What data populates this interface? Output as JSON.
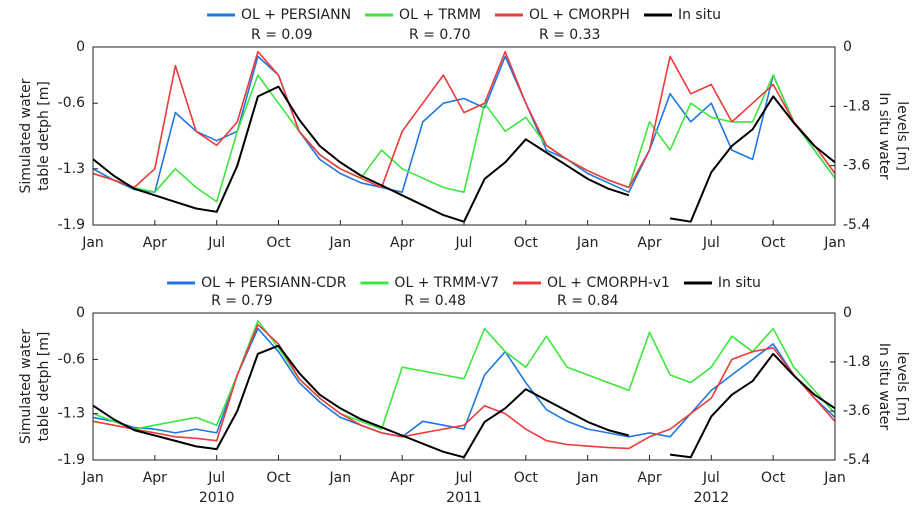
{
  "chart_data": [
    {
      "type": "line",
      "ylabel": [
        "Simulated water",
        "table detph [m]"
      ],
      "y2label": [
        "In situ water",
        "levels [m]"
      ],
      "x": [
        0,
        1,
        2,
        3,
        4,
        5,
        6,
        7,
        8,
        9,
        10,
        11,
        12,
        13,
        14,
        15,
        16,
        17,
        18,
        19,
        20,
        21,
        22,
        23,
        24,
        25,
        26,
        27,
        28,
        29,
        30,
        31,
        32,
        33,
        34,
        35,
        36
      ],
      "xlim": [
        0,
        36
      ],
      "xticks": [
        {
          "value": 0,
          "label": "Jan"
        },
        {
          "value": 3,
          "label": "Apr"
        },
        {
          "value": 6,
          "label": "Jul"
        },
        {
          "value": 9,
          "label": "Oct"
        },
        {
          "value": 12,
          "label": "Jan"
        },
        {
          "value": 15,
          "label": "Apr"
        },
        {
          "value": 18,
          "label": "Jul"
        },
        {
          "value": 21,
          "label": "Oct"
        },
        {
          "value": 24,
          "label": "Jan"
        },
        {
          "value": 27,
          "label": "Apr"
        },
        {
          "value": 30,
          "label": "Jul"
        },
        {
          "value": 33,
          "label": "Oct"
        },
        {
          "value": 36,
          "label": "Jan"
        }
      ],
      "ylim": [
        -1.9,
        0
      ],
      "yticks": [
        -1.9,
        -1.3,
        -0.6,
        0
      ],
      "y2lim": [
        -5.4,
        0
      ],
      "y2ticks": [
        -5.4,
        -3.6,
        -1.8,
        0
      ],
      "series": [
        {
          "name": "OL + PERSIANN",
          "r_label": "R = 0.09",
          "color": "#1f77e0",
          "values": [
            -1.3,
            -1.42,
            -1.52,
            -1.55,
            -0.7,
            -0.9,
            -1.0,
            -0.9,
            -0.1,
            -0.3,
            -0.9,
            -1.2,
            -1.35,
            -1.45,
            -1.5,
            -1.55,
            -0.8,
            -0.6,
            -0.55,
            -0.65,
            -0.1,
            -0.6,
            -1.1,
            -1.2,
            -1.35,
            -1.45,
            -1.55,
            -1.1,
            -0.5,
            -0.8,
            -0.6,
            -1.1,
            -1.2,
            -0.3,
            -0.8,
            -1.1,
            -1.4
          ]
        },
        {
          "name": "OL + TRMM",
          "r_label": "R = 0.70",
          "color": "#3ee63e",
          "values": [
            -1.35,
            -1.42,
            -1.5,
            -1.55,
            -1.3,
            -1.5,
            -1.65,
            -0.9,
            -0.3,
            -0.6,
            -0.9,
            -1.15,
            -1.3,
            -1.4,
            -1.1,
            -1.3,
            -1.4,
            -1.5,
            -1.55,
            -0.6,
            -0.9,
            -0.75,
            -1.05,
            -1.2,
            -1.32,
            -1.42,
            -1.5,
            -0.8,
            -1.1,
            -0.6,
            -0.75,
            -0.8,
            -0.8,
            -0.3,
            -0.8,
            -1.1,
            -1.4
          ]
        },
        {
          "name": "OL + CMORPH",
          "r_label": "R = 0.33",
          "color": "#ee3a3a",
          "values": [
            -1.35,
            -1.42,
            -1.5,
            -1.3,
            -0.2,
            -0.9,
            -1.05,
            -0.8,
            -0.05,
            -0.3,
            -0.9,
            -1.15,
            -1.3,
            -1.4,
            -1.5,
            -0.9,
            -0.6,
            -0.3,
            -0.7,
            -0.6,
            -0.05,
            -0.6,
            -1.05,
            -1.2,
            -1.32,
            -1.42,
            -1.5,
            -1.1,
            -0.1,
            -0.5,
            -0.4,
            -0.8,
            -0.6,
            -0.4,
            -0.8,
            -1.05,
            -1.35
          ]
        },
        {
          "name": "In situ",
          "color": "#000000",
          "axis": "y2",
          "values": [
            -3.4,
            -3.9,
            -4.3,
            -4.5,
            -4.7,
            -4.9,
            -5.0,
            -3.6,
            -1.5,
            -1.2,
            -2.2,
            -3.0,
            -3.5,
            -3.9,
            -4.2,
            -4.5,
            -4.8,
            -5.1,
            -5.3,
            -4.0,
            -3.5,
            -2.8,
            -3.2,
            -3.6,
            -4.0,
            -4.3,
            -4.5,
            null,
            -5.2,
            -5.3,
            -3.8,
            -3.0,
            -2.5,
            -1.5,
            -2.3,
            -3.0,
            -3.5
          ]
        }
      ]
    },
    {
      "type": "line",
      "ylabel": [
        "Simulated water",
        "table detph [m]"
      ],
      "y2label": [
        "In situ water",
        "levels [m]"
      ],
      "x": [
        0,
        1,
        2,
        3,
        4,
        5,
        6,
        7,
        8,
        9,
        10,
        11,
        12,
        13,
        14,
        15,
        16,
        17,
        18,
        19,
        20,
        21,
        22,
        23,
        24,
        25,
        26,
        27,
        28,
        29,
        30,
        31,
        32,
        33,
        34,
        35,
        36
      ],
      "xlim": [
        0,
        36
      ],
      "xticks": [
        {
          "value": 0,
          "label": "Jan"
        },
        {
          "value": 3,
          "label": "Apr"
        },
        {
          "value": 6,
          "label": "Jul"
        },
        {
          "value": 9,
          "label": "Oct"
        },
        {
          "value": 12,
          "label": "Jan"
        },
        {
          "value": 15,
          "label": "Apr"
        },
        {
          "value": 18,
          "label": "Jul"
        },
        {
          "value": 21,
          "label": "Oct"
        },
        {
          "value": 24,
          "label": "Jan"
        },
        {
          "value": 27,
          "label": "Apr"
        },
        {
          "value": 30,
          "label": "Jul"
        },
        {
          "value": 33,
          "label": "Oct"
        },
        {
          "value": 36,
          "label": "Jan"
        }
      ],
      "year_labels": [
        {
          "value": 6,
          "label": "2010"
        },
        {
          "value": 18,
          "label": "2011"
        },
        {
          "value": 30,
          "label": "2012"
        }
      ],
      "ylim": [
        -1.9,
        0
      ],
      "yticks": [
        -1.9,
        -1.3,
        -0.6,
        0
      ],
      "y2lim": [
        -5.4,
        0
      ],
      "y2ticks": [
        -5.4,
        -3.6,
        -1.8,
        0
      ],
      "series": [
        {
          "name": "OL + PERSIANN-CDR",
          "r_label": "R = 0.79",
          "color": "#1f77e0",
          "values": [
            -1.35,
            -1.4,
            -1.48,
            -1.5,
            -1.55,
            -1.5,
            -1.55,
            -0.8,
            -0.2,
            -0.5,
            -0.9,
            -1.15,
            -1.35,
            -1.45,
            -1.55,
            -1.6,
            -1.4,
            -1.45,
            -1.5,
            -0.8,
            -0.5,
            -0.9,
            -1.25,
            -1.4,
            -1.5,
            -1.55,
            -1.6,
            -1.55,
            -1.6,
            -1.3,
            -1.0,
            -0.8,
            -0.6,
            -0.4,
            -0.8,
            -1.1,
            -1.35
          ]
        },
        {
          "name": "OL + TRMM-V7",
          "r_label": "R = 0.48",
          "color": "#3ee63e",
          "values": [
            -1.3,
            -1.4,
            -1.5,
            -1.45,
            -1.4,
            -1.35,
            -1.45,
            -0.8,
            -0.1,
            -0.45,
            -0.85,
            -1.1,
            -1.3,
            -1.4,
            -1.5,
            -0.7,
            -0.75,
            -0.8,
            -0.85,
            -0.2,
            -0.5,
            -0.7,
            -0.3,
            -0.7,
            -0.8,
            -0.9,
            -1.0,
            -0.25,
            -0.8,
            -0.9,
            -0.7,
            -0.3,
            -0.5,
            -0.2,
            -0.7,
            -1.0,
            -1.3
          ]
        },
        {
          "name": "OL + CMORPH-v1",
          "r_label": "R = 0.84",
          "color": "#ee3a3a",
          "values": [
            -1.4,
            -1.45,
            -1.5,
            -1.55,
            -1.6,
            -1.62,
            -1.65,
            -0.8,
            -0.15,
            -0.4,
            -0.85,
            -1.1,
            -1.3,
            -1.45,
            -1.55,
            -1.6,
            -1.55,
            -1.5,
            -1.45,
            -1.2,
            -1.3,
            -1.5,
            -1.65,
            -1.7,
            -1.72,
            -1.74,
            -1.75,
            -1.6,
            -1.5,
            -1.3,
            -1.1,
            -0.6,
            -0.5,
            -0.45,
            -0.8,
            -1.1,
            -1.4
          ]
        },
        {
          "name": "In situ",
          "color": "#000000",
          "axis": "y2",
          "values": [
            -3.4,
            -3.9,
            -4.3,
            -4.5,
            -4.7,
            -4.9,
            -5.0,
            -3.6,
            -1.5,
            -1.2,
            -2.2,
            -3.0,
            -3.5,
            -3.9,
            -4.2,
            -4.5,
            -4.8,
            -5.1,
            -5.3,
            -4.0,
            -3.5,
            -2.8,
            -3.2,
            -3.6,
            -4.0,
            -4.3,
            -4.5,
            null,
            -5.2,
            -5.3,
            -3.8,
            -3.0,
            -2.5,
            -1.5,
            -2.3,
            -3.0,
            -3.5
          ]
        }
      ]
    }
  ]
}
